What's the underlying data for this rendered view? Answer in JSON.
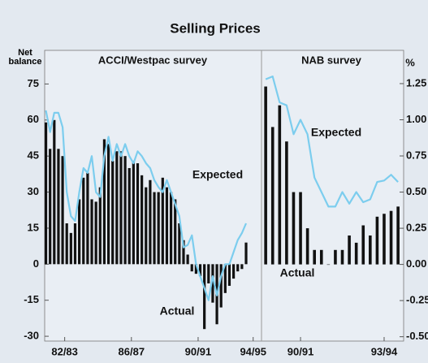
{
  "chart_data": [
    {
      "type": "bar-line",
      "title": "Selling Prices",
      "subtitle": "ACCI/Westpac survey",
      "ylabel": "Net balance",
      "x": [
        1981.875,
        1982.125,
        1982.375,
        1982.625,
        1982.875,
        1983.125,
        1983.375,
        1983.625,
        1983.875,
        1984.125,
        1984.375,
        1984.625,
        1984.875,
        1985.125,
        1985.375,
        1985.625,
        1985.875,
        1986.125,
        1986.375,
        1986.625,
        1986.875,
        1987.125,
        1987.375,
        1987.625,
        1987.875,
        1988.125,
        1988.375,
        1988.625,
        1988.875,
        1989.125,
        1989.375,
        1989.625,
        1989.875,
        1990.125,
        1990.375,
        1990.625,
        1990.875,
        1991.125,
        1991.375,
        1991.625,
        1991.875,
        1992.125,
        1992.375,
        1992.625,
        1992.875,
        1993.125,
        1993.375,
        1993.625,
        1993.875
      ],
      "xlim": [
        1981.8,
        1994.8
      ],
      "xticks": [
        {
          "value": 1983,
          "label": "82/83"
        },
        {
          "value": 1987,
          "label": "86/87"
        },
        {
          "value": 1991,
          "label": "90/91"
        },
        {
          "value": 1994.3,
          "label": "94/95"
        }
      ],
      "ylim": [
        -32,
        89
      ],
      "yticks": [
        -30,
        -15,
        0,
        15,
        30,
        45,
        60,
        75
      ],
      "series": [
        {
          "name": "Actual",
          "kind": "bar",
          "color": "#111111",
          "values": [
            59,
            48,
            60,
            48,
            45,
            17,
            13,
            17,
            27,
            36,
            38,
            27,
            26,
            32,
            52,
            50,
            43,
            47,
            47,
            45,
            40,
            43,
            42,
            37,
            32,
            35,
            30,
            30,
            36,
            32,
            30,
            27,
            17,
            10,
            4,
            -3,
            -4,
            -5,
            -27,
            -8,
            -16,
            -25,
            -18,
            -12,
            -9,
            -6,
            -3,
            -2,
            9
          ]
        },
        {
          "name": "Expected",
          "kind": "line",
          "color": "#7ccdee",
          "values": [
            64,
            55,
            63,
            63,
            57,
            30,
            20,
            18,
            30,
            40,
            38,
            45,
            30,
            28,
            45,
            53,
            43,
            50,
            45,
            50,
            45,
            42,
            47,
            45,
            42,
            40,
            35,
            32,
            30,
            35,
            30,
            25,
            20,
            7,
            8,
            12,
            0,
            -5,
            -10,
            -15,
            -5,
            -13,
            -5,
            0,
            0,
            5,
            10,
            13,
            17
          ]
        }
      ]
    },
    {
      "type": "bar-line",
      "subtitle": "NAB survey",
      "ylabel": "%",
      "x": [
        1989.75,
        1990,
        1990.25,
        1990.5,
        1990.75,
        1991,
        1991.25,
        1991.5,
        1991.75,
        1992,
        1992.25,
        1992.5,
        1992.75,
        1993,
        1993.25,
        1993.5,
        1993.75,
        1994,
        1994.25,
        1994.5
      ],
      "xlim": [
        1989.6,
        1994.7
      ],
      "xticks": [
        {
          "value": 1991,
          "label": "90/91"
        },
        {
          "value": 1994,
          "label": "93/94"
        }
      ],
      "ylim": [
        -0.53,
        1.48
      ],
      "yticks": [
        {
          "value": -0.5,
          "label": "-0.50"
        },
        -0.25,
        {
          "value": 0,
          "label": "0.00"
        },
        0.25,
        {
          "value": 0.5,
          "label": "0.50"
        },
        0.75,
        {
          "value": 1,
          "label": "1.00"
        },
        1.25
      ],
      "series": [
        {
          "name": "Actual",
          "kind": "bar",
          "color": "#111111",
          "values": [
            1.23,
            0.95,
            1.1,
            0.85,
            0.5,
            0.5,
            0.25,
            0.1,
            0.1,
            0,
            0.1,
            0.1,
            0.2,
            0.15,
            0.27,
            0.2,
            0.33,
            0.35,
            0.37,
            0.4
          ]
        },
        {
          "name": "Expected",
          "kind": "line",
          "color": "#7ccdee",
          "values": [
            1.28,
            1.3,
            1.12,
            1.1,
            0.9,
            1.0,
            0.9,
            0.6,
            0.5,
            0.4,
            0.4,
            0.5,
            0.42,
            0.5,
            0.43,
            0.45,
            0.57,
            0.58,
            0.62,
            0.57
          ]
        }
      ]
    }
  ]
}
